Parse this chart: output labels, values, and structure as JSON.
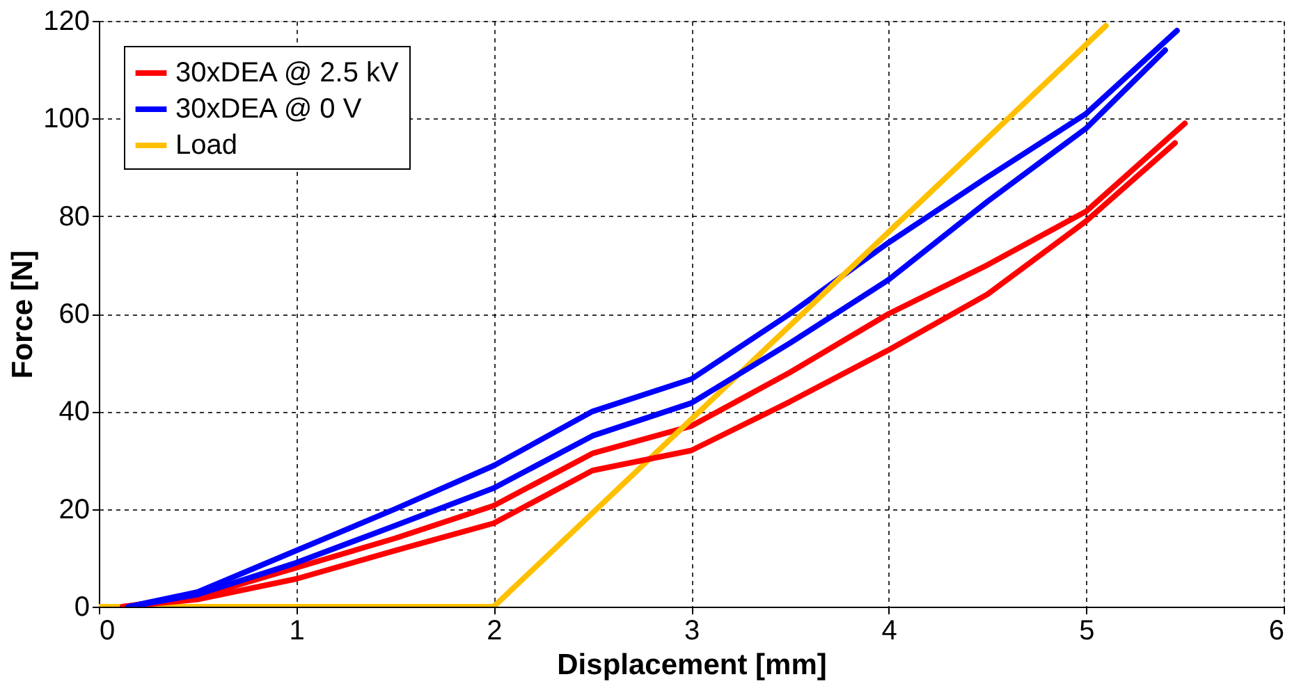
{
  "chart_data": {
    "type": "line",
    "xlabel": "Displacement [mm]",
    "ylabel": "Force [N]",
    "xlim": [
      0,
      6
    ],
    "ylim": [
      0,
      120
    ],
    "xticks": [
      0,
      1,
      2,
      3,
      4,
      5,
      6
    ],
    "yticks": [
      0,
      20,
      40,
      60,
      80,
      100,
      120
    ],
    "grid": true,
    "legend": "top left",
    "line_style": "solid",
    "marker": "none",
    "series": [
      {
        "name": "30xDEA @ 2.5 kV",
        "color": "#ff0000",
        "x": [
          0.12,
          0.5,
          1,
          1.5,
          2,
          2.5,
          3,
          3.5,
          4,
          4.5,
          5,
          5.5
        ],
        "values": [
          0,
          2,
          8,
          14,
          20.7,
          31.4,
          37,
          48,
          60,
          70,
          81,
          99
        ]
      },
      {
        "name": "30xDEA @ 0 V",
        "color": "#0000ff",
        "x": [
          0.15,
          0.5,
          1,
          1.5,
          2,
          2.5,
          3,
          3.5,
          4,
          4.5,
          5,
          5.46
        ],
        "values": [
          0,
          3,
          11.5,
          20,
          28.9,
          40,
          46.6,
          60,
          74.6,
          88,
          101,
          118
        ]
      },
      {
        "name": "Load",
        "color": "#ffc000",
        "x": [
          0,
          2,
          5.1
        ],
        "values": [
          0,
          0,
          119
        ]
      },
      {
        "color": "#ff0000",
        "x": [
          0.12,
          0.5,
          1,
          1.5,
          2,
          2.5,
          3,
          3.5,
          4,
          4.5,
          5,
          5.45
        ],
        "values": [
          0,
          1.5,
          5.7,
          11.5,
          17.1,
          27.9,
          32,
          42,
          52.6,
          64,
          79,
          95
        ]
      },
      {
        "color": "#0000ff",
        "x": [
          0.15,
          0.5,
          1,
          1.5,
          2,
          2.5,
          3,
          3.5,
          4,
          4.5,
          5,
          5.4
        ],
        "values": [
          0,
          2.5,
          9,
          16.6,
          24.3,
          35,
          41.7,
          54,
          67,
          83,
          98,
          114
        ]
      }
    ]
  }
}
